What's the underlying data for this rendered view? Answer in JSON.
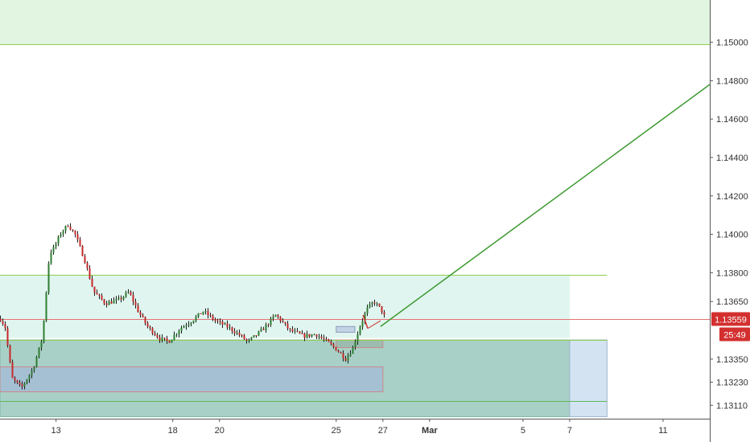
{
  "chart_data": {
    "type": "candlestick",
    "instrument_note": "",
    "colors": {
      "up": "#2e7d32",
      "down": "#c62828",
      "wick": "#1b1b1b",
      "trendline": "#3d9a31",
      "price_line": "#e57373",
      "price_label_bg": "#d32f2f",
      "target_zone": "#e1f5e1",
      "range_zone": "#e0f5ef",
      "demand_zone": "#a8d0c6",
      "blue_zone": "#a4bdd4",
      "projection_zone": "#d3e3f2",
      "axis_line": "#555555"
    },
    "y_axis": {
      "ticks": [
        "1.15000",
        "1.14800",
        "1.14600",
        "1.14400",
        "1.14200",
        "1.14000",
        "1.13800",
        "1.13650",
        "1.13350",
        "1.13230",
        "1.13110"
      ],
      "ylim": [
        1.1304,
        1.1522
      ]
    },
    "x_axis": {
      "ticks": [
        "13",
        "18",
        "20",
        "25",
        "27",
        "Mar",
        "5",
        "7",
        "11"
      ],
      "tick_days": [
        13,
        18,
        20,
        25,
        27,
        29,
        33,
        35,
        39
      ],
      "xlim": [
        10.6,
        41.0
      ]
    },
    "current_price": {
      "label": "1.13559",
      "value": 1.13559
    },
    "countdown": "25:49",
    "zones": [
      {
        "name": "target-zone",
        "y_top": 1.1522,
        "y_bottom": 1.1499,
        "x_start": 10.6,
        "x_end": 41.0
      },
      {
        "name": "range-zone",
        "y_top": 1.1379,
        "y_bottom": 1.1346,
        "x_start": 10.6,
        "x_end": 35.0
      },
      {
        "name": "demand-zone",
        "y_top": 1.1345,
        "y_bottom": 1.1305,
        "x_start": 10.6,
        "x_end": 35.0
      },
      {
        "name": "projection-zone",
        "y_top": 1.1345,
        "y_bottom": 1.1305,
        "x_start": 35.0,
        "x_end": 36.6
      },
      {
        "name": "blue-zone",
        "y_top": 1.1331,
        "y_bottom": 1.1318,
        "x_start": 10.6,
        "x_end": 27.0
      },
      {
        "name": "small-box-1",
        "y_top": 1.1352,
        "y_bottom": 1.1349,
        "x_start": 25.0,
        "x_end": 25.8
      },
      {
        "name": "small-box-2",
        "y_top": 1.1345,
        "y_bottom": 1.1341,
        "x_start": 25.0,
        "x_end": 27.0
      }
    ],
    "hlines": [
      {
        "name": "target-line",
        "y": 1.1499
      },
      {
        "name": "range-top-line",
        "y": 1.1379
      },
      {
        "name": "range-bottom-line",
        "y": 1.1345
      },
      {
        "name": "lower-line",
        "y": 1.1313
      }
    ],
    "trendline": {
      "from": {
        "day": 26.9,
        "price": 1.1352
      },
      "to": {
        "day": 41.0,
        "price": 1.1478
      }
    },
    "path_anchors": [
      [
        10.6,
        1.1356
      ],
      [
        10.8,
        1.1352
      ],
      [
        11.1,
        1.1325
      ],
      [
        11.5,
        1.132
      ],
      [
        12.0,
        1.133
      ],
      [
        12.4,
        1.1346
      ],
      [
        12.7,
        1.139
      ],
      [
        12.9,
        1.1393
      ],
      [
        13.2,
        1.1401
      ],
      [
        13.5,
        1.1405
      ],
      [
        13.8,
        1.14
      ],
      [
        14.2,
        1.1387
      ],
      [
        14.6,
        1.137
      ],
      [
        15.1,
        1.1364
      ],
      [
        15.7,
        1.1366
      ],
      [
        16.1,
        1.137
      ],
      [
        16.5,
        1.136
      ],
      [
        16.9,
        1.1352
      ],
      [
        17.4,
        1.1346
      ],
      [
        17.8,
        1.1344
      ],
      [
        18.3,
        1.1351
      ],
      [
        18.8,
        1.1355
      ],
      [
        19.3,
        1.136
      ],
      [
        19.8,
        1.1355
      ],
      [
        20.3,
        1.1352
      ],
      [
        20.8,
        1.1348
      ],
      [
        21.2,
        1.1344
      ],
      [
        21.8,
        1.135
      ],
      [
        22.4,
        1.1358
      ],
      [
        23.0,
        1.135
      ],
      [
        23.6,
        1.1347
      ],
      [
        24.1,
        1.1348
      ],
      [
        24.6,
        1.1344
      ],
      [
        25.0,
        1.134
      ],
      [
        25.4,
        1.1335
      ],
      [
        25.7,
        1.1341
      ],
      [
        26.0,
        1.1352
      ],
      [
        26.3,
        1.1361
      ],
      [
        26.6,
        1.1365
      ],
      [
        26.9,
        1.1361
      ],
      [
        27.1,
        1.1356
      ]
    ]
  }
}
